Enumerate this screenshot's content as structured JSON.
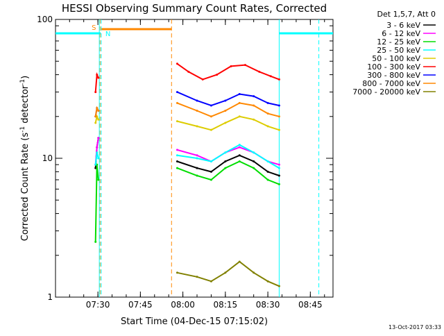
{
  "chart_data": {
    "type": "line",
    "title": "HESSI Observing Summary Count Rates, Corrected",
    "xlabel": "Start Time (04-Dec-15 07:15:02)",
    "ylabel": "Corrected Count Rate (s⁻¹ detector⁻¹)",
    "ylabel_main": "Corrected Count Rate (s",
    "ylabel_sup1": "-1",
    "ylabel_mid": " detector",
    "ylabel_sup2": "-1",
    "ylabel_end": ")",
    "y_scale": "log",
    "ylim": [
      1,
      100
    ],
    "xlim": [
      "07:15:02",
      "08:53:00"
    ],
    "x_ticks": [
      "07:30",
      "07:45",
      "08:00",
      "08:15",
      "08:30",
      "08:45"
    ],
    "y_ticks": [
      "1",
      "10",
      "100"
    ],
    "legend_title": "Det 1,5,7, Att 0",
    "legend_position": "top-right",
    "series": [
      {
        "name": "3 - 6 keV",
        "color": "#000000",
        "segments": [
          {
            "x": [
              "07:29:10",
              "07:29:40",
              "07:30:10"
            ],
            "y": [
              8.5,
              12,
              14
            ]
          },
          {
            "x": [
              "07:58:00",
              "08:05:00",
              "08:10:00",
              "08:15:00",
              "08:20:00",
              "08:25:00",
              "08:30:00",
              "08:34:00"
            ],
            "y": [
              9.5,
              8.5,
              8.0,
              9.5,
              10.5,
              9.5,
              8.0,
              7.5
            ]
          }
        ]
      },
      {
        "name": "6 - 12 keV",
        "color": "#ff00ff",
        "segments": [
          {
            "x": [
              "07:29:10",
              "07:29:40",
              "07:30:10"
            ],
            "y": [
              9,
              12,
              14
            ]
          },
          {
            "x": [
              "07:58:00",
              "08:05:00",
              "08:10:00",
              "08:15:00",
              "08:20:00",
              "08:25:00",
              "08:30:00",
              "08:34:00"
            ],
            "y": [
              11.5,
              10.5,
              9.5,
              11,
              12,
              11,
              9.5,
              9
            ]
          }
        ]
      },
      {
        "name": "12 - 25 keV",
        "color": "#00dd00",
        "segments": [
          {
            "x": [
              "07:29:10",
              "07:29:40",
              "07:30:10"
            ],
            "y": [
              2.5,
              9,
              7
            ]
          },
          {
            "x": [
              "07:58:00",
              "08:05:00",
              "08:10:00",
              "08:15:00",
              "08:20:00",
              "08:25:00",
              "08:30:00",
              "08:34:00"
            ],
            "y": [
              8.5,
              7.5,
              7.0,
              8.5,
              9.5,
              8.5,
              7.0,
              6.5
            ]
          }
        ]
      },
      {
        "name": "25 - 50 keV",
        "color": "#00ffff",
        "segments": [
          {
            "x": [
              "07:29:10",
              "07:29:40",
              "07:30:10"
            ],
            "y": [
              9,
              11,
              10
            ]
          },
          {
            "x": [
              "07:58:00",
              "08:05:00",
              "08:10:00",
              "08:15:00",
              "08:20:00",
              "08:25:00",
              "08:30:00",
              "08:34:00"
            ],
            "y": [
              10.5,
              10,
              9.5,
              11,
              12.5,
              11,
              9.5,
              8.5
            ]
          }
        ]
      },
      {
        "name": "50 - 100 keV",
        "color": "#ddcc00",
        "segments": [
          {
            "x": [
              "07:29:10",
              "07:29:40",
              "07:30:10"
            ],
            "y": [
              18,
              20,
              19
            ]
          },
          {
            "x": [
              "07:58:00",
              "08:05:00",
              "08:10:00",
              "08:15:00",
              "08:20:00",
              "08:25:00",
              "08:30:00",
              "08:34:00"
            ],
            "y": [
              18.5,
              17,
              16,
              18,
              20,
              19,
              17,
              16
            ]
          }
        ]
      },
      {
        "name": "100 - 300 keV",
        "color": "#ff0000",
        "segments": [
          {
            "x": [
              "07:29:10",
              "07:29:40",
              "07:30:10"
            ],
            "y": [
              30,
              40,
              38
            ]
          },
          {
            "x": [
              "07:58:00",
              "08:02:00",
              "08:07:00",
              "08:12:00",
              "08:17:00",
              "08:22:00",
              "08:27:00",
              "08:31:00",
              "08:34:00"
            ],
            "y": [
              48,
              42,
              37,
              40,
              46,
              47,
              42,
              39,
              37
            ]
          }
        ]
      },
      {
        "name": "300 - 800 keV",
        "color": "#0000ff",
        "segments": [
          {
            "x": [
              "07:29:10",
              "07:29:40",
              "07:30:10"
            ],
            "y": [
              20,
              23,
              22
            ]
          },
          {
            "x": [
              "07:58:00",
              "08:05:00",
              "08:10:00",
              "08:15:00",
              "08:20:00",
              "08:25:00",
              "08:30:00",
              "08:34:00"
            ],
            "y": [
              30,
              26,
              24,
              26,
              29,
              28,
              25,
              24
            ]
          }
        ]
      },
      {
        "name": "800 - 7000 keV",
        "color": "#ff8800",
        "segments": [
          {
            "x": [
              "07:29:10",
              "07:29:40",
              "07:30:10"
            ],
            "y": [
              20,
              23,
              22
            ]
          },
          {
            "x": [
              "07:58:00",
              "08:05:00",
              "08:10:00",
              "08:15:00",
              "08:20:00",
              "08:25:00",
              "08:30:00",
              "08:34:00"
            ],
            "y": [
              25,
              22,
              20,
              22,
              25,
              24,
              21,
              20
            ]
          }
        ]
      },
      {
        "name": "7000 - 20000 keV",
        "color": "#808000",
        "segments": [
          {
            "x": [
              "07:58:00",
              "08:05:00",
              "08:10:00",
              "08:15:00",
              "08:20:00",
              "08:25:00",
              "08:30:00",
              "08:34:00"
            ],
            "y": [
              1.5,
              1.4,
              1.3,
              1.5,
              1.8,
              1.5,
              1.3,
              1.2
            ]
          }
        ]
      }
    ],
    "annotations": {
      "saa_label": "S",
      "night_label": "N",
      "saa_color": "#ff8800",
      "night_color": "#00ffff",
      "saa_interval": [
        "07:31:00",
        "07:56:00"
      ],
      "night_intervals": [
        [
          "07:15:02",
          "07:31:00"
        ],
        [
          "08:34:00",
          "08:53:00"
        ]
      ],
      "saa_markers": [
        "07:30:45",
        "07:56:00"
      ],
      "night_markers": [
        "07:30:30",
        "07:31:10",
        "08:34:00",
        "08:48:00"
      ]
    },
    "grid": false
  },
  "footer": {
    "timestamp": "13-Oct-2017 03:33"
  }
}
